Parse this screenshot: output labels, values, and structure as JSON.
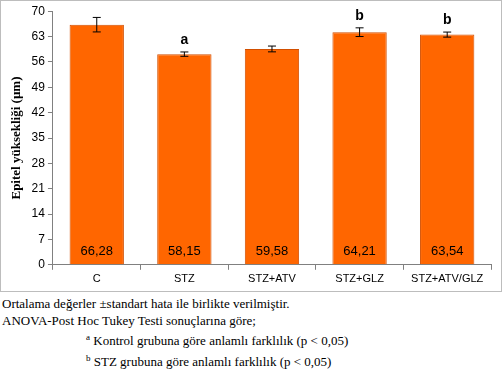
{
  "chart_data": {
    "type": "bar",
    "categories": [
      "C",
      "STZ",
      "STZ+ATV",
      "STZ+GLZ",
      "STZ+ATV/GLZ"
    ],
    "values": [
      66.28,
      58.15,
      59.58,
      64.21,
      63.54
    ],
    "value_labels": [
      "66,28",
      "58,15",
      "59,58",
      "64,21",
      "63,54"
    ],
    "errors": [
      2.0,
      0.6,
      0.8,
      1.2,
      0.7
    ],
    "color": "#ff6600",
    "y_label": "Epitel yüksekliği (µm)",
    "ylim": [
      0,
      70
    ],
    "yticks": [
      0,
      7,
      14,
      21,
      28,
      35,
      42,
      49,
      56,
      63,
      70
    ],
    "grid": false,
    "data_labels": true,
    "annotations": [
      {
        "category": "STZ",
        "text": "a"
      },
      {
        "category": "STZ+GLZ",
        "text": "b"
      },
      {
        "category": "STZ+ATV/GLZ",
        "text": "b"
      }
    ],
    "notes": [
      "Ortalama değerler ±standart hata ile birlikte verilmiştir.",
      "ANOVA-Post Hoc Tukey Testi sonuçlarına göre;"
    ],
    "footnotes": [
      {
        "marker": "a",
        "text": "Kontrol grubuna göre anlamlı farklılık (p < 0,05)"
      },
      {
        "marker": "b",
        "text": "STZ grubuna göre anlamlı farklılık (p < 0,05)"
      }
    ]
  }
}
